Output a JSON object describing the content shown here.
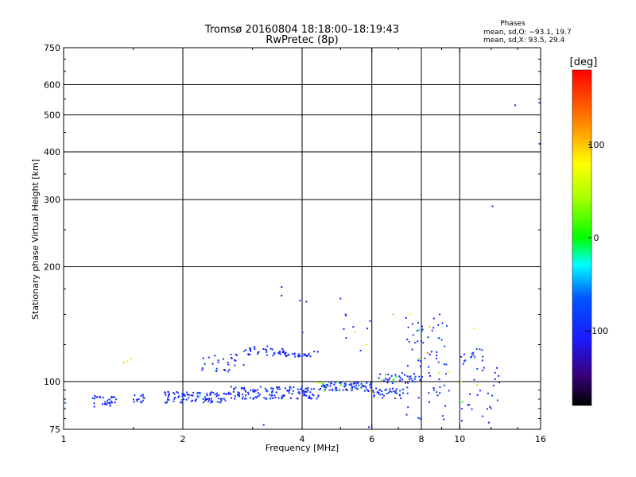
{
  "header": {
    "title": "Tromsø 20160804 18:18:00–18:19:43",
    "subtitle": "RwPretec (8p)"
  },
  "stats": {
    "heading": "Phases",
    "line_o": "mean, sd,O: −93.1, 19.7",
    "line_x": "mean, sd,X:  93.5, 29.4"
  },
  "chart_data": {
    "type": "scatter",
    "xlabel": "Frequency [MHz]",
    "ylabel": "Stationary phase Virtual Height [km]",
    "x_scale": "log",
    "y_scale": "log",
    "xlim": [
      1,
      16
    ],
    "ylim": [
      75,
      750
    ],
    "x_ticks": [
      1,
      2,
      4,
      6,
      8,
      10,
      16
    ],
    "x_tick_labels": [
      "1",
      "2",
      "4",
      "6",
      "8",
      "10",
      "16"
    ],
    "y_ticks": [
      75,
      100,
      200,
      300,
      400,
      500,
      600,
      750
    ],
    "y_tick_labels": [
      "75",
      "100",
      "200",
      "300",
      "400",
      "500",
      "600",
      "750"
    ],
    "grid": true,
    "colorbar": {
      "label": "[deg]",
      "range": [
        -180,
        180
      ],
      "ticks": [
        100,
        0,
        -100
      ],
      "tick_labels": [
        "100",
        "0",
        "−100"
      ]
    },
    "point_color": "phase",
    "scatter_segments": [
      {
        "f": [
          1.18,
          1.36
        ],
        "h": [
          86,
          92
        ],
        "phase": [
          -115,
          -80
        ],
        "count": 32
      },
      {
        "f": [
          1.5,
          1.63
        ],
        "h": [
          88,
          93
        ],
        "phase": [
          -115,
          -80
        ],
        "count": 14
      },
      {
        "f": [
          1.8,
          2.6
        ],
        "h": [
          88,
          94
        ],
        "phase": [
          -110,
          -40
        ],
        "count": 95
      },
      {
        "f": [
          2.6,
          4.4
        ],
        "h": [
          90,
          97
        ],
        "phase": [
          -115,
          -30
        ],
        "count": 140
      },
      {
        "f": [
          4.4,
          6.0
        ],
        "h": [
          94,
          100
        ],
        "phase": [
          -110,
          100
        ],
        "count": 90
      },
      {
        "f": [
          6.0,
          7.2
        ],
        "h": [
          90,
          96
        ],
        "phase": [
          -110,
          -60
        ],
        "count": 35
      },
      {
        "f": [
          6.2,
          8.0
        ],
        "h": [
          99,
          106
        ],
        "phase": [
          -110,
          60
        ],
        "count": 35
      },
      {
        "f": [
          2.2,
          2.85
        ],
        "h": [
          106,
          118
        ],
        "phase": [
          -110,
          -60
        ],
        "count": 28
      },
      {
        "f": [
          2.85,
          3.6
        ],
        "h": [
          117,
          124
        ],
        "phase": [
          -115,
          -70
        ],
        "count": 40
      },
      {
        "f": [
          3.6,
          4.3
        ],
        "h": [
          116,
          119
        ],
        "phase": [
          -115,
          -70
        ],
        "count": 25
      },
      {
        "f": [
          7.3,
          9.4
        ],
        "h": [
          78,
          150
        ],
        "phase": [
          -120,
          140
        ],
        "count": 75
      },
      {
        "f": [
          10.0,
          12.6
        ],
        "h": [
          78,
          122
        ],
        "phase": [
          -120,
          130
        ],
        "count": 45
      },
      {
        "f": [
          4.0,
          6.0
        ],
        "h": [
          118,
          150
        ],
        "phase": [
          -100,
          120
        ],
        "count": 12
      }
    ],
    "scatter_points": [
      {
        "x": 1.01,
        "y": 88,
        "phase": -60
      },
      {
        "x": 1.42,
        "y": 112,
        "phase": 100
      },
      {
        "x": 1.45,
        "y": 113,
        "phase": 90
      },
      {
        "x": 1.48,
        "y": 115,
        "phase": 40
      },
      {
        "x": 3.55,
        "y": 177,
        "phase": -100
      },
      {
        "x": 3.55,
        "y": 168,
        "phase": -110
      },
      {
        "x": 3.95,
        "y": 163,
        "phase": -100
      },
      {
        "x": 4.1,
        "y": 162,
        "phase": -110
      },
      {
        "x": 5.0,
        "y": 165,
        "phase": -100
      },
      {
        "x": 5.15,
        "y": 150,
        "phase": -110
      },
      {
        "x": 6.8,
        "y": 150,
        "phase": 110
      },
      {
        "x": 7.5,
        "y": 150,
        "phase": 80
      },
      {
        "x": 8.9,
        "y": 150,
        "phase": -100
      },
      {
        "x": 10.9,
        "y": 138,
        "phase": 90
      },
      {
        "x": 12.1,
        "y": 288,
        "phase": -110
      },
      {
        "x": 13.8,
        "y": 530,
        "phase": -120
      },
      {
        "x": 15.9,
        "y": 538,
        "phase": -110
      },
      {
        "x": 15.9,
        "y": 420,
        "phase": -110
      },
      {
        "x": 3.2,
        "y": 77,
        "phase": -120
      },
      {
        "x": 5.9,
        "y": 76,
        "phase": -100
      }
    ]
  }
}
